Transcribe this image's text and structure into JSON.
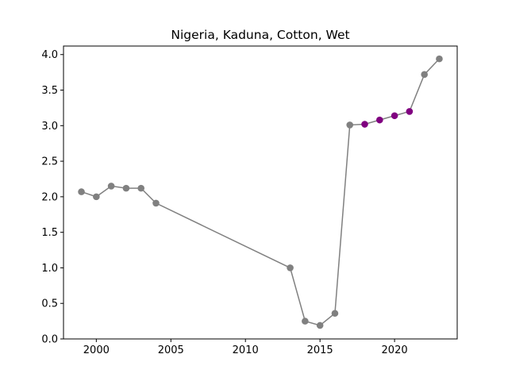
{
  "chart_data": {
    "type": "line",
    "title": "Nigeria, Kaduna, Cotton, Wet",
    "xlabel": "",
    "ylabel": "",
    "xlim": [
      1997.8,
      2024.2
    ],
    "ylim": [
      0.0,
      4.12
    ],
    "xticks": [
      2000,
      2005,
      2010,
      2015,
      2020
    ],
    "yticks": [
      0.0,
      0.5,
      1.0,
      1.5,
      2.0,
      2.5,
      3.0,
      3.5,
      4.0
    ],
    "grid": false,
    "line_color": "#808080",
    "series": [
      {
        "x": [
          1999,
          2000,
          2001,
          2002,
          2003,
          2004,
          2013,
          2014,
          2015,
          2016,
          2017,
          2018,
          2019,
          2020,
          2021,
          2022,
          2023
        ],
        "y": [
          2.07,
          2.0,
          2.15,
          2.12,
          2.12,
          1.91,
          1.0,
          0.25,
          0.19,
          0.36,
          3.01,
          3.02,
          3.08,
          3.14,
          3.2,
          3.72,
          3.94
        ]
      }
    ],
    "point_colors": [
      "#808080",
      "#808080",
      "#808080",
      "#808080",
      "#808080",
      "#808080",
      "#808080",
      "#808080",
      "#808080",
      "#808080",
      "#808080",
      "#800080",
      "#800080",
      "#800080",
      "#800080",
      "#808080",
      "#808080"
    ]
  }
}
